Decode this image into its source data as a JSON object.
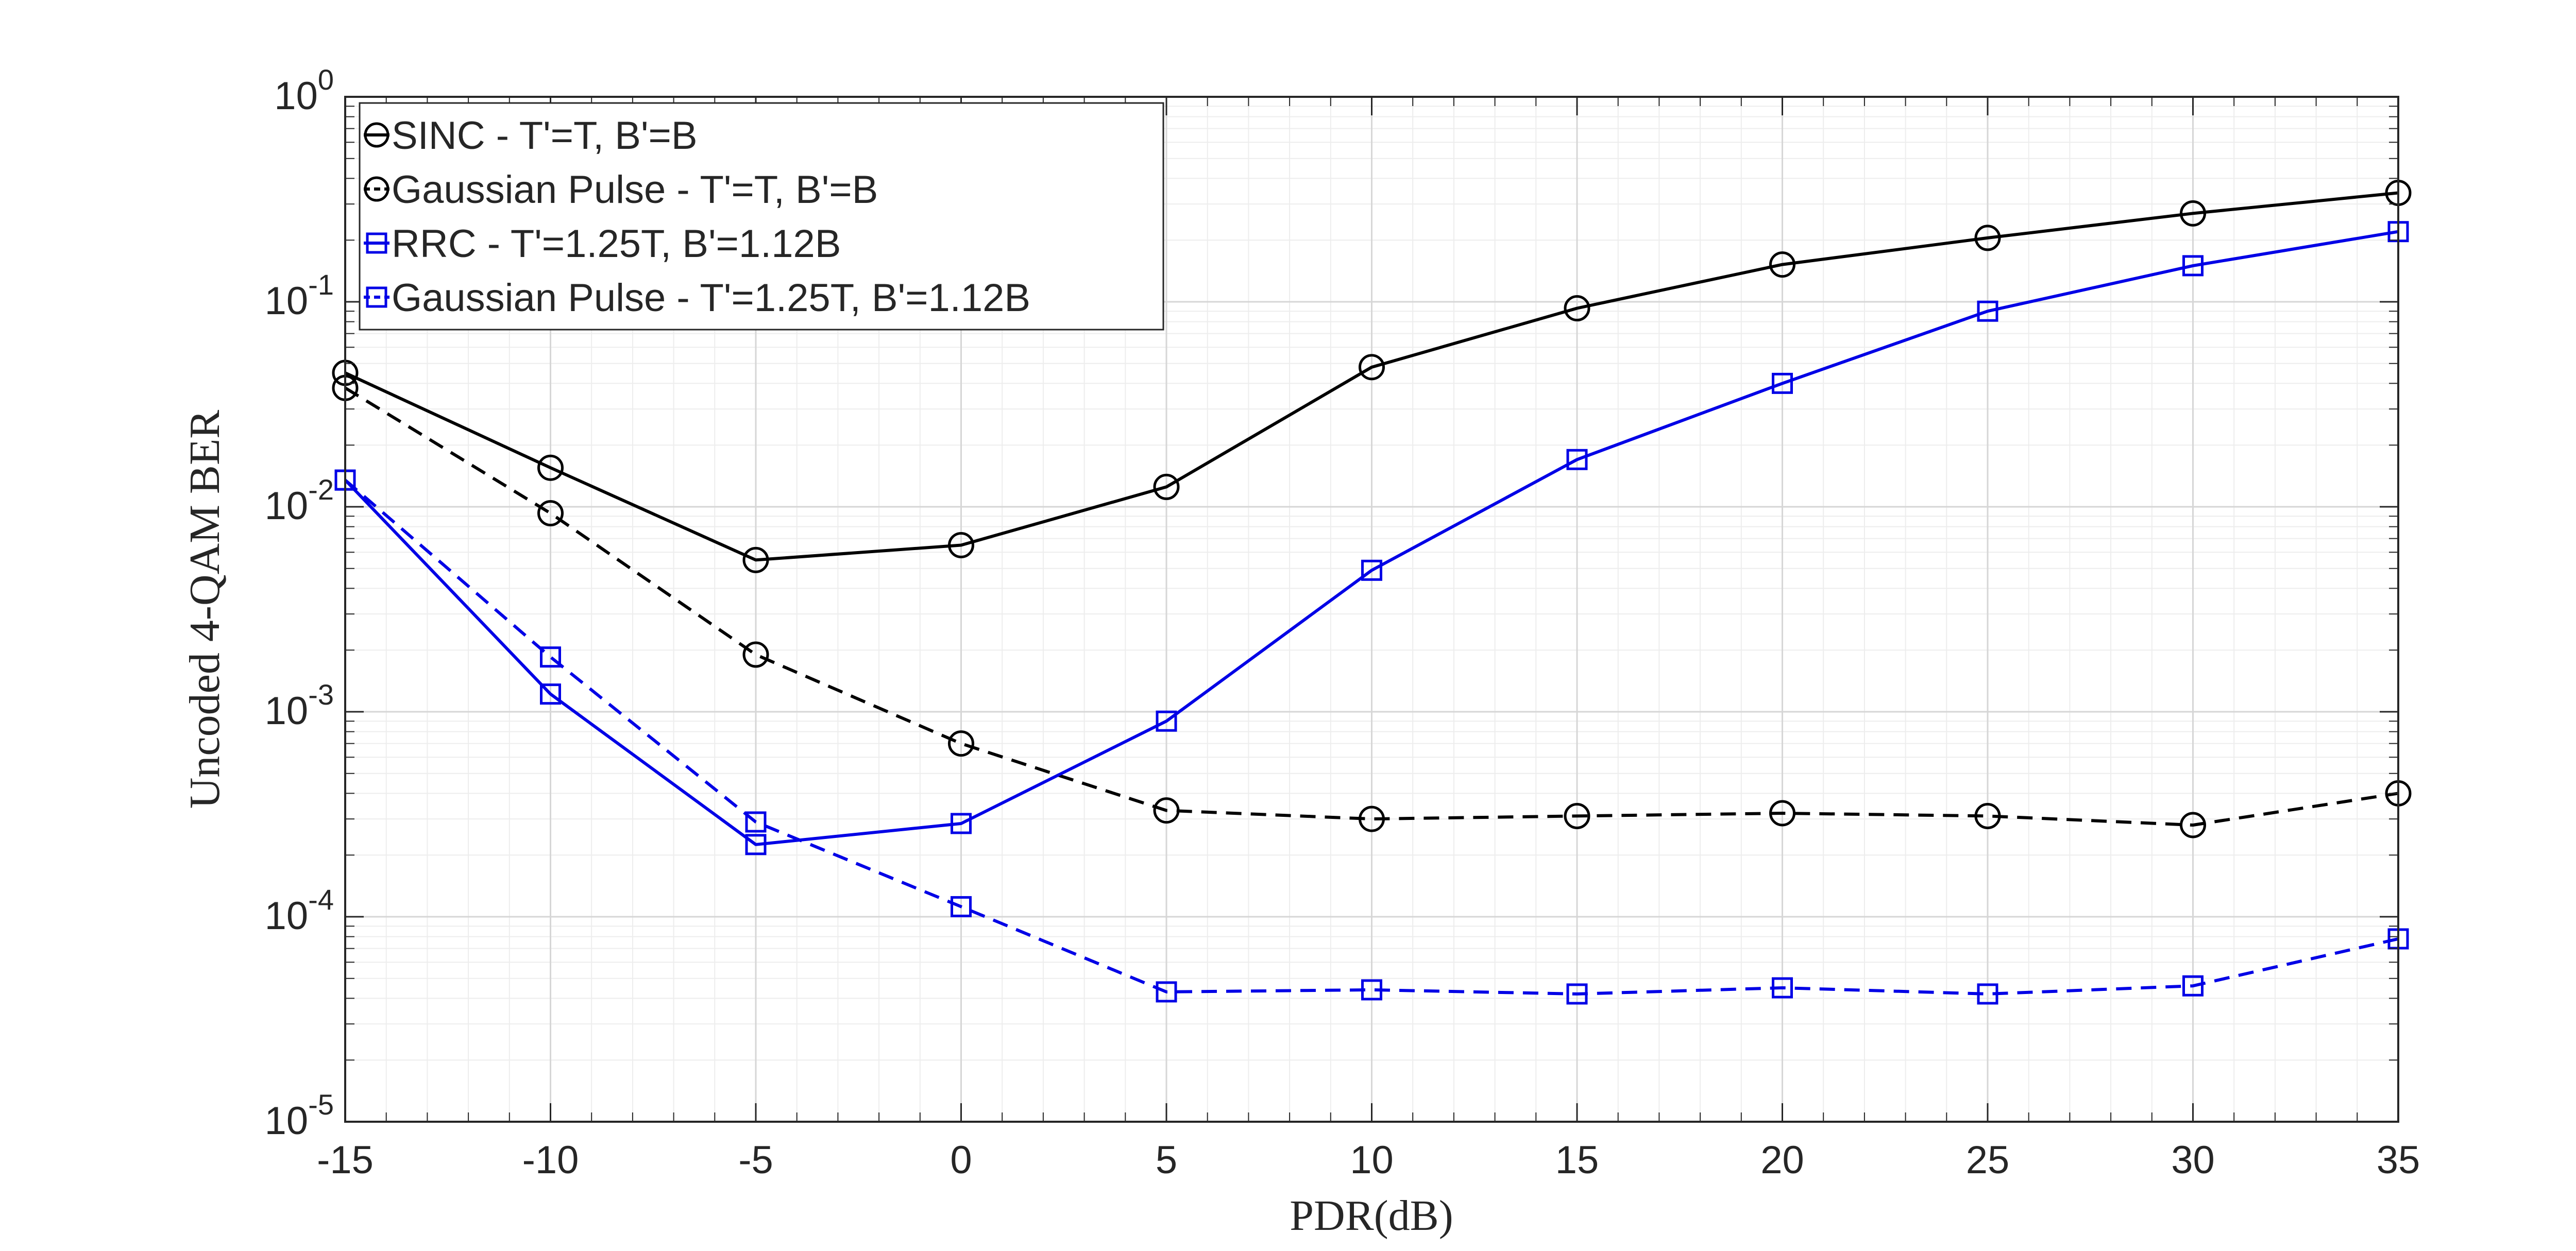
{
  "chart_data": {
    "type": "line",
    "title": "",
    "xlabel": "PDR(dB)",
    "ylabel": "Uncoded 4-QAM BER",
    "xlim": [
      -15,
      35
    ],
    "ylim": [
      1e-05,
      1
    ],
    "yscale": "log",
    "grid": true,
    "minor_grid": true,
    "legend_position": "top-left",
    "x": [
      -15,
      -10,
      -5,
      0,
      5,
      10,
      15,
      20,
      25,
      30,
      35
    ],
    "x_ticks": [
      -15,
      -10,
      -5,
      0,
      5,
      10,
      15,
      20,
      25,
      30,
      35
    ],
    "x_tick_labels": [
      "-15",
      "-10",
      "-5",
      "0",
      "5",
      "10",
      "15",
      "20",
      "25",
      "30",
      "35"
    ],
    "y_ticks": [
      {
        "value": 1,
        "base": "10",
        "exp": "0"
      },
      {
        "value": 0.1,
        "base": "10",
        "exp": "-1"
      },
      {
        "value": 0.01,
        "base": "10",
        "exp": "-2"
      },
      {
        "value": 0.001,
        "base": "10",
        "exp": "-3"
      },
      {
        "value": 0.0001,
        "base": "10",
        "exp": "-4"
      },
      {
        "value": 1e-05,
        "base": "10",
        "exp": "-5"
      }
    ],
    "series": [
      {
        "name": "SINC - T'=T, B'=B",
        "color": "#000000",
        "line_style": "solid",
        "marker": "circle",
        "values": [
          0.045,
          0.0155,
          0.0055,
          0.0065,
          0.0125,
          0.048,
          0.093,
          0.152,
          0.205,
          0.27,
          0.34
        ]
      },
      {
        "name": "Gaussian Pulse - T'=T, B'=B",
        "color": "#000000",
        "line_style": "dashed",
        "marker": "circle",
        "values": [
          0.038,
          0.0093,
          0.0019,
          0.0007,
          0.00033,
          0.0003,
          0.00031,
          0.00032,
          0.00031,
          0.00028,
          0.0004
        ]
      },
      {
        "name": "RRC - T'=1.25T, B'=1.12B",
        "color": "#0000e6",
        "line_style": "solid",
        "marker": "square",
        "values": [
          0.0135,
          0.00122,
          0.000225,
          0.000285,
          0.0009,
          0.0049,
          0.017,
          0.04,
          0.09,
          0.15,
          0.22
        ]
      },
      {
        "name": "Gaussian Pulse - T'=1.25T, B'=1.12B",
        "color": "#0000e6",
        "line_style": "dashed",
        "marker": "square",
        "values": [
          0.0135,
          0.00185,
          0.00029,
          0.000112,
          4.3e-05,
          4.4e-05,
          4.2e-05,
          4.5e-05,
          4.2e-05,
          4.6e-05,
          7.8e-05
        ]
      }
    ]
  }
}
